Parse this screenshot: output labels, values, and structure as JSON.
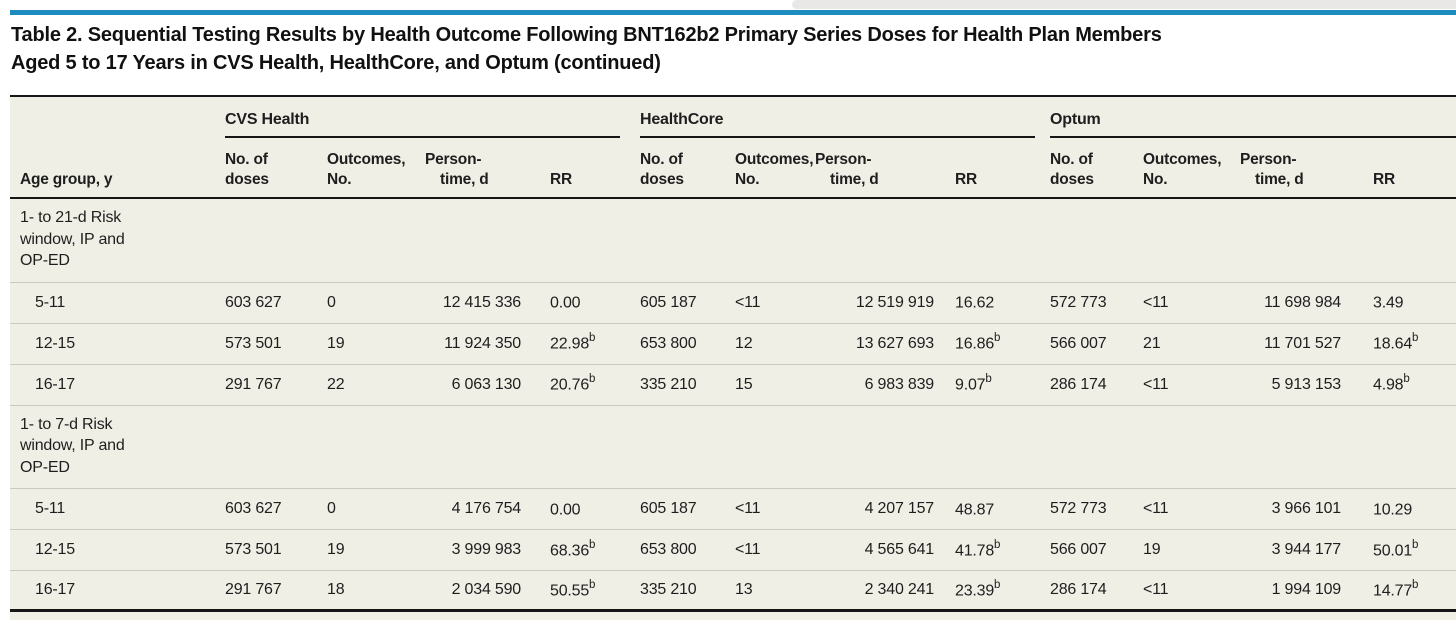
{
  "colors": {
    "accent_blue": "#1e8cbe",
    "table_background": "#f0efe6",
    "rule_black": "#161616",
    "rule_gray": "#cbcabd"
  },
  "title": {
    "line1": "Table 2. Sequential Testing Results by Health Outcome Following BNT162b2 Primary Series Doses for Health Plan Members",
    "line2": "Aged 5 to 17 Years in CVS Health, HealthCore, and Optum (continued)"
  },
  "table": {
    "stub_header": "Age group, y",
    "groups": [
      {
        "label": "CVS Health"
      },
      {
        "label": "HealthCore"
      },
      {
        "label": "Optum"
      }
    ],
    "subcols": {
      "doses1": "No. of",
      "doses2": "doses",
      "out1": "Outcomes,",
      "out2": "No.",
      "pt1": "Person-",
      "pt2": "time, d",
      "rr": "RR"
    },
    "sections": [
      {
        "label": "1- to 21-d Risk window, IP and OP-ED",
        "rows": [
          {
            "age": "5-11",
            "cvs": {
              "doses": "603 627",
              "outcomes": "0",
              "pt": "12 415 336",
              "rr": "0.00"
            },
            "hc": {
              "doses": "605 187",
              "outcomes": "<11",
              "pt": "12 519 919",
              "rr": "16.62"
            },
            "opt": {
              "doses": "572 773",
              "outcomes": "<11",
              "pt": "11 698 984",
              "rr": "3.49"
            }
          },
          {
            "age": "12-15",
            "cvs": {
              "doses": "573 501",
              "outcomes": "19",
              "pt": "11 924 350",
              "rr": "22.98",
              "rr_sup": "b"
            },
            "hc": {
              "doses": "653 800",
              "outcomes": "12",
              "pt": "13 627 693",
              "rr": "16.86",
              "rr_sup": "b"
            },
            "opt": {
              "doses": "566 007",
              "outcomes": "21",
              "pt": "11 701 527",
              "rr": "18.64",
              "rr_sup": "b"
            }
          },
          {
            "age": "16-17",
            "cvs": {
              "doses": "291 767",
              "outcomes": "22",
              "pt": "6 063 130",
              "rr": "20.76",
              "rr_sup": "b"
            },
            "hc": {
              "doses": "335 210",
              "outcomes": "15",
              "pt": "6 983 839",
              "rr": "9.07",
              "rr_sup": "b"
            },
            "opt": {
              "doses": "286 174",
              "outcomes": "<11",
              "pt": "5 913 153",
              "rr": "4.98",
              "rr_sup": "b"
            }
          }
        ]
      },
      {
        "label": "1- to 7-d Risk window, IP and OP-ED",
        "rows": [
          {
            "age": "5-11",
            "cvs": {
              "doses": "603 627",
              "outcomes": "0",
              "pt": "4 176 754",
              "rr": "0.00"
            },
            "hc": {
              "doses": "605 187",
              "outcomes": "<11",
              "pt": "4 207 157",
              "rr": "48.87"
            },
            "opt": {
              "doses": "572 773",
              "outcomes": "<11",
              "pt": "3 966 101",
              "rr": "10.29"
            }
          },
          {
            "age": "12-15",
            "cvs": {
              "doses": "573 501",
              "outcomes": "19",
              "pt": "3 999 983",
              "rr": "68.36",
              "rr_sup": "b"
            },
            "hc": {
              "doses": "653 800",
              "outcomes": "<11",
              "pt": "4 565 641",
              "rr": "41.78",
              "rr_sup": "b"
            },
            "opt": {
              "doses": "566 007",
              "outcomes": "19",
              "pt": "3 944 177",
              "rr": "50.01",
              "rr_sup": "b"
            }
          },
          {
            "age": "16-17",
            "cvs": {
              "doses": "291 767",
              "outcomes": "18",
              "pt": "2 034 590",
              "rr": "50.55",
              "rr_sup": "b"
            },
            "hc": {
              "doses": "335 210",
              "outcomes": "13",
              "pt": "2 340 241",
              "rr": "23.39",
              "rr_sup": "b"
            },
            "opt": {
              "doses": "286 174",
              "outcomes": "<11",
              "pt": "1 994 109",
              "rr": "14.77",
              "rr_sup": "b"
            }
          }
        ]
      }
    ]
  }
}
